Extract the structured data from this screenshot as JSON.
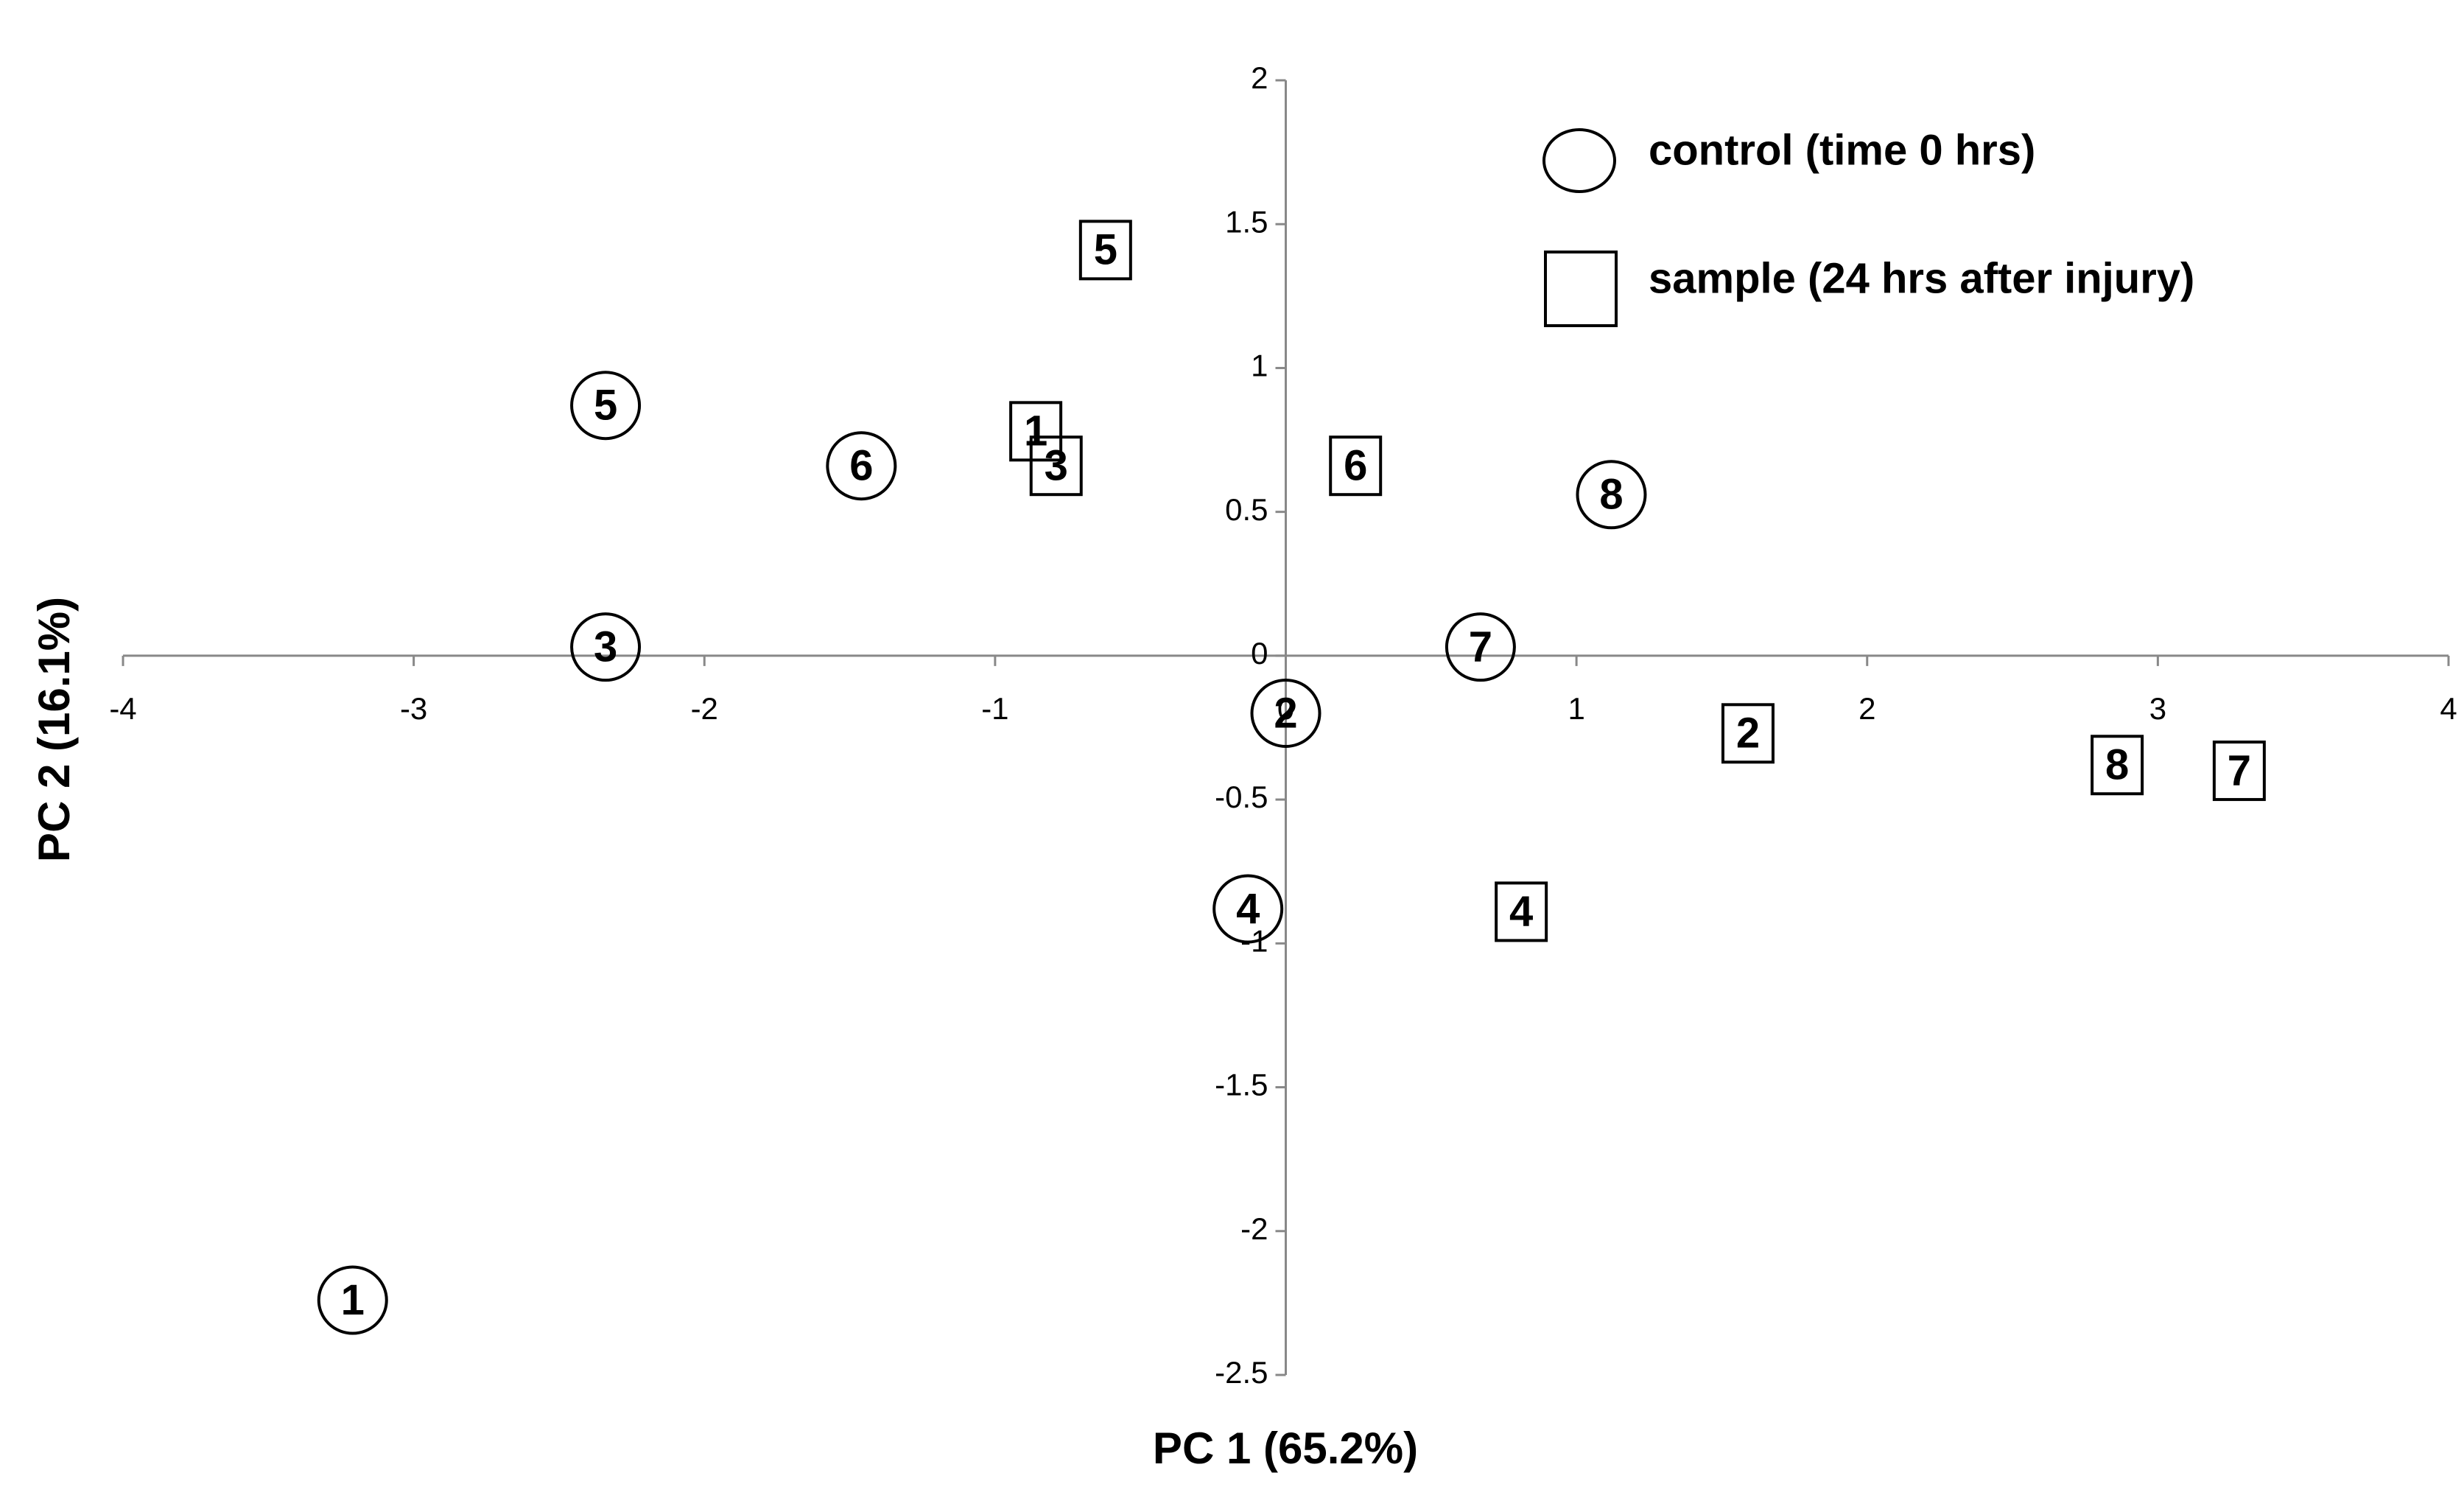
{
  "chart_data": {
    "type": "scatter",
    "xlabel": "PC 1 (65.2%)",
    "ylabel": "PC 2 (16.1%)",
    "xlim": [
      -4,
      4
    ],
    "ylim": [
      -2.5,
      2
    ],
    "xticks": [
      -4,
      -3,
      -2,
      -1,
      0,
      1,
      2,
      3,
      4
    ],
    "yticks": [
      -2.5,
      -2,
      -1.5,
      -1,
      -0.5,
      0,
      0.5,
      1,
      1.5,
      2
    ],
    "series": [
      {
        "name": "control (time 0 hrs)",
        "marker": "ellipse",
        "color": "#000000",
        "labels": [
          "1",
          "2",
          "3",
          "4",
          "5",
          "6",
          "7",
          "8"
        ],
        "x": [
          -3.21,
          0.0,
          -2.34,
          -0.13,
          -2.34,
          -1.46,
          0.67,
          1.12
        ],
        "values": [
          -2.24,
          -0.2,
          0.03,
          -0.88,
          0.87,
          0.66,
          0.03,
          0.56
        ]
      },
      {
        "name": "sample (24 hrs after injury)",
        "marker": "square",
        "color": "#000000",
        "labels": [
          "1",
          "2",
          "3",
          "4",
          "5",
          "6",
          "7",
          "8"
        ],
        "x": [
          -0.86,
          1.59,
          -0.79,
          0.81,
          -0.62,
          0.24,
          3.28,
          2.86
        ],
        "values": [
          0.78,
          -0.27,
          0.66,
          -0.89,
          1.41,
          0.66,
          -0.4,
          -0.38
        ]
      }
    ]
  }
}
